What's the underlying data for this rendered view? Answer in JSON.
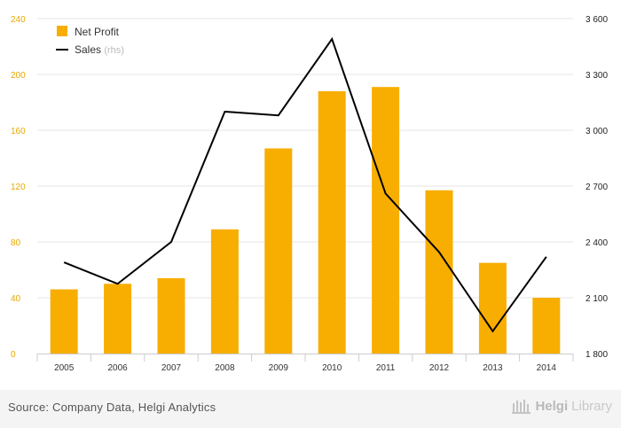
{
  "chart_data": {
    "type": "bar",
    "categories": [
      "2005",
      "2006",
      "2007",
      "2008",
      "2009",
      "2010",
      "2011",
      "2012",
      "2013",
      "2014"
    ],
    "series": [
      {
        "name": "Net Profit",
        "type": "bar",
        "axis": "left",
        "values": [
          46,
          50,
          54,
          89,
          147,
          188,
          191,
          117,
          65,
          40
        ]
      },
      {
        "name": "Sales",
        "name_suffix": "(rhs)",
        "type": "line",
        "axis": "right",
        "values": [
          2290,
          2175,
          2400,
          3100,
          3080,
          3490,
          2660,
          2345,
          1920,
          2320
        ]
      }
    ],
    "y_left": {
      "lim": [
        0,
        240
      ],
      "ticks": [
        "0",
        "40",
        "80",
        "120",
        "160",
        "200",
        "240"
      ]
    },
    "y_right": {
      "lim": [
        1800,
        3600
      ],
      "ticks": [
        "1 800",
        "2 100",
        "2 400",
        "2 700",
        "3 000",
        "3 300",
        "3 600"
      ]
    },
    "grid": "horizontal",
    "legend": "top-left",
    "colors": {
      "bar": "#F7AE00",
      "line": "#000000",
      "left_ticks": "#E8A800",
      "grid": "#e6e6e6"
    }
  },
  "footer": {
    "source": "Source: Company Data, Helgi Analytics",
    "brand_part1": "Helgi",
    "brand_part2": "Library"
  }
}
